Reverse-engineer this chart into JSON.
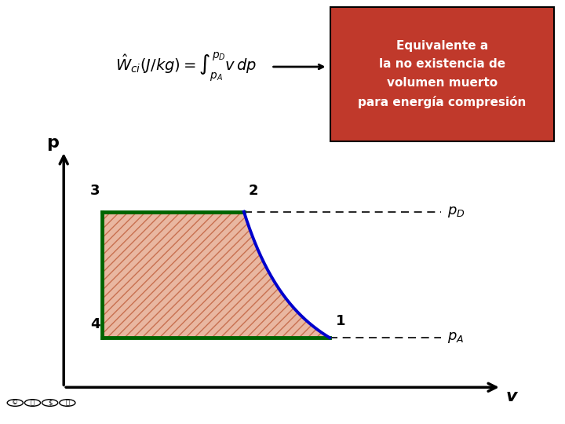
{
  "bg_color": "#ffffff",
  "outer_border_color": "#c0c0c0",
  "box_color": "#c0392b",
  "box_text": "Equivalente a\nla no existencia de\nvolumen muerto\npara energía compresión",
  "box_text_color": "#ffffff",
  "p_D": 0.78,
  "p_A": 0.22,
  "v2": 0.42,
  "v1": 0.62,
  "v3": 0.09,
  "hatch_color": "#c87050",
  "hatch_pattern": "///",
  "fill_color": [
    0.88,
    0.6,
    0.48
  ],
  "green_color": "#006400",
  "blue_color": "#0000cc",
  "point_label_size": 13,
  "pD_label": "$p_D$",
  "pA_label": "$p_A$",
  "p_axis_label": "p",
  "v_axis_label": "v"
}
